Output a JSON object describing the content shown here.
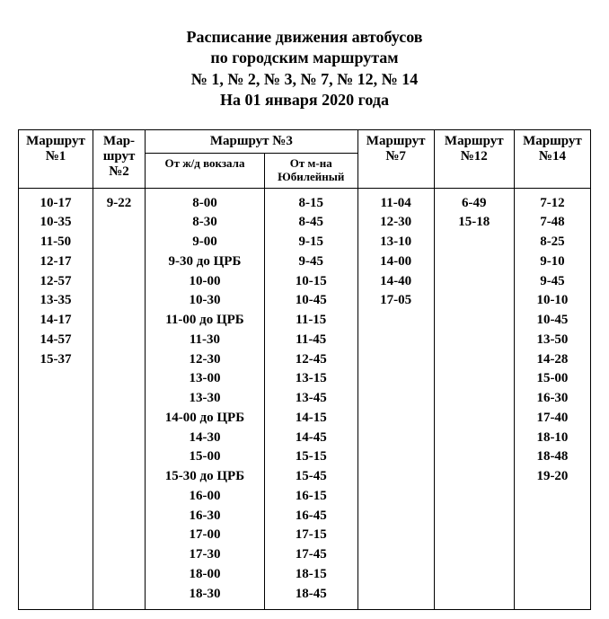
{
  "title": {
    "line1": "Расписание  движения автобусов",
    "line2": "по городским маршрутам",
    "line3": "№ 1, № 2, № 3, № 7, № 12, № 14",
    "line4": "На 01 января 2020 года"
  },
  "headers": {
    "r1": "Маршрут №1",
    "r2": "Мар-шрут №2",
    "r3": "Маршрут №3",
    "r3a": "От ж/д вокзала",
    "r3b": "От м-на Юбилейный",
    "r7": "Маршрут №7",
    "r12": "Маршрут №12",
    "r14": "Маршрут №14"
  },
  "columns": {
    "r1": [
      "10-17",
      "10-35",
      "11-50",
      "12-17",
      "12-57",
      "13-35",
      "14-17",
      "14-57",
      "15-37"
    ],
    "r2": [
      "9-22"
    ],
    "r3a": [
      "8-00",
      "8-30",
      "9-00",
      "9-30 до ЦРБ",
      "10-00",
      "10-30",
      "11-00 до ЦРБ",
      "11-30",
      "12-30",
      "13-00",
      "13-30",
      "14-00 до ЦРБ",
      "14-30",
      "15-00",
      "15-30 до ЦРБ",
      "16-00",
      "16-30",
      "17-00",
      "17-30",
      "18-00",
      "18-30"
    ],
    "r3b": [
      "8-15",
      "8-45",
      "9-15",
      "9-45",
      "10-15",
      "10-45",
      "11-15",
      "11-45",
      "12-45",
      "13-15",
      "13-45",
      "14-15",
      "14-45",
      "15-15",
      "15-45",
      "16-15",
      "16-45",
      "17-15",
      "17-45",
      "18-15",
      "18-45"
    ],
    "r7": [
      "11-04",
      "12-30",
      "13-10",
      "14-00",
      "14-40",
      "17-05"
    ],
    "r12": [
      "6-49",
      "15-18"
    ],
    "r14": [
      "7-12",
      "7-48",
      "8-25",
      "9-10",
      "9-45",
      "10-10",
      "10-45",
      "13-50",
      "14-28",
      "15-00",
      "16-30",
      "17-40",
      "18-10",
      "18-48",
      "19-20"
    ]
  },
  "style": {
    "background_color": "#ffffff",
    "text_color": "#000000",
    "border_color": "#000000",
    "font_family": "Times New Roman",
    "title_fontsize_pt": 14,
    "header_fontsize_pt": 11,
    "cell_fontsize_pt": 11
  }
}
